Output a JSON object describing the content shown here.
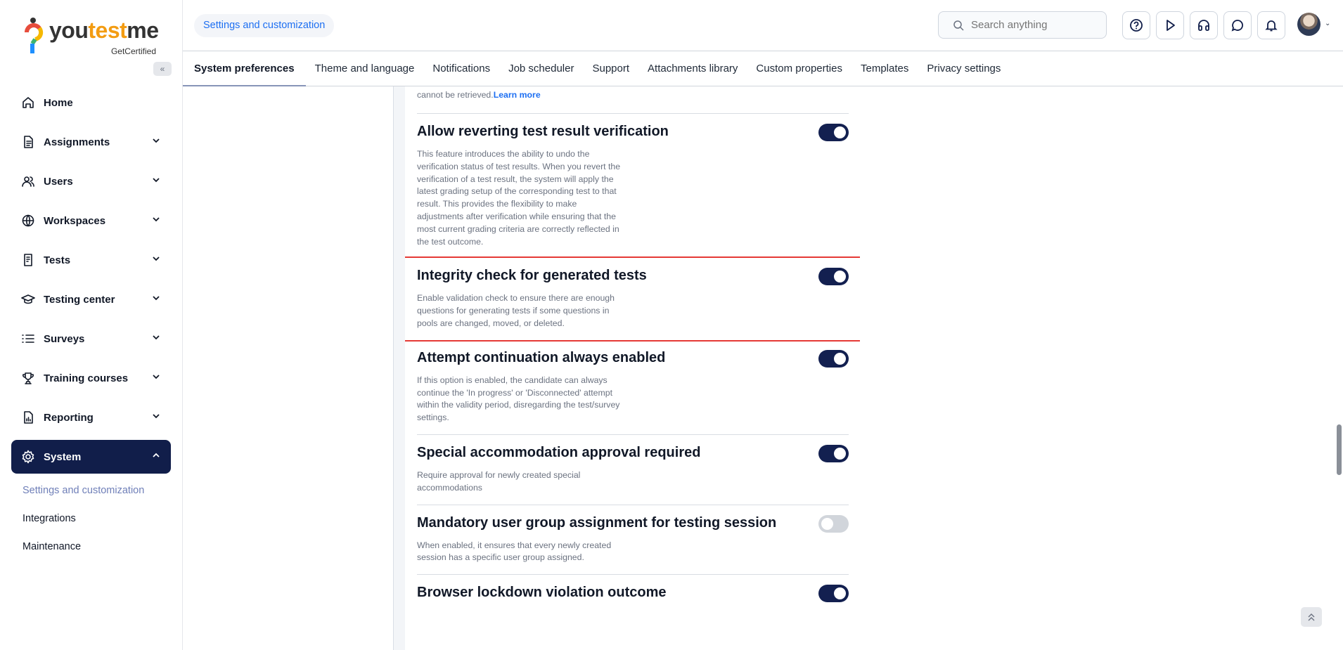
{
  "brand": {
    "name_parts": [
      "you",
      "test",
      "me"
    ],
    "tagline": "GetCertified"
  },
  "sidebar": {
    "collapse_icon": "double-chevron-left-icon",
    "items": [
      {
        "label": "Home",
        "icon": "home-icon"
      },
      {
        "label": "Assignments",
        "icon": "document-icon"
      },
      {
        "label": "Users",
        "icon": "users-icon"
      },
      {
        "label": "Workspaces",
        "icon": "globe-icon"
      },
      {
        "label": "Tests",
        "icon": "test-icon"
      },
      {
        "label": "Testing center",
        "icon": "graduation-cap-icon"
      },
      {
        "label": "Surveys",
        "icon": "list-icon"
      },
      {
        "label": "Training courses",
        "icon": "trophy-icon"
      },
      {
        "label": "Reporting",
        "icon": "report-icon"
      },
      {
        "label": "System",
        "icon": "gear-icon",
        "active": true
      }
    ],
    "subitems": [
      {
        "label": "Settings and customization",
        "active": true
      },
      {
        "label": "Integrations"
      },
      {
        "label": "Maintenance"
      }
    ]
  },
  "header": {
    "breadcrumb": "Settings and customization",
    "search_placeholder": "Search anything",
    "icons": [
      "help-icon",
      "play-icon",
      "headset-icon",
      "chat-icon",
      "bell-icon"
    ]
  },
  "tabs": [
    "System preferences",
    "Theme and language",
    "Notifications",
    "Job scheduler",
    "Support",
    "Attachments library",
    "Custom properties",
    "Templates",
    "Privacy settings"
  ],
  "active_tab": "System preferences",
  "content": {
    "top_text": "cannot be retrieved.",
    "learn_more": "Learn more",
    "settings": [
      {
        "title": "Allow reverting test result verification",
        "enabled": true,
        "description": "This feature introduces the ability to undo the verification status of test results. When you revert the verification of a test result, the system will apply the latest grading setup of the corresponding test to that result. This provides the flexibility to make adjustments after verification while ensuring that the most current grading criteria are correctly reflected in the test outcome."
      },
      {
        "title": "Integrity check for generated tests",
        "enabled": true,
        "highlighted": true,
        "description": "Enable validation check to ensure there are enough questions for generating tests if some questions in pools are changed, moved, or deleted."
      },
      {
        "title": "Attempt continuation always enabled",
        "enabled": true,
        "description": "If this option is enabled, the candidate can always continue the 'In progress' or 'Disconnected' attempt within the validity period, disregarding the test/survey settings."
      },
      {
        "title": "Special accommodation approval required",
        "enabled": true,
        "description": "Require approval for newly created special accommodations"
      },
      {
        "title": "Mandatory user group assignment for testing session",
        "enabled": false,
        "description": "When enabled, it ensures that every newly created session has a specific user group assigned."
      },
      {
        "title": "Browser lockdown violation outcome",
        "enabled": true,
        "description": ""
      }
    ]
  },
  "colors": {
    "primary": "#111e4a",
    "link": "#1d6ff2",
    "highlight": "#e53935"
  }
}
